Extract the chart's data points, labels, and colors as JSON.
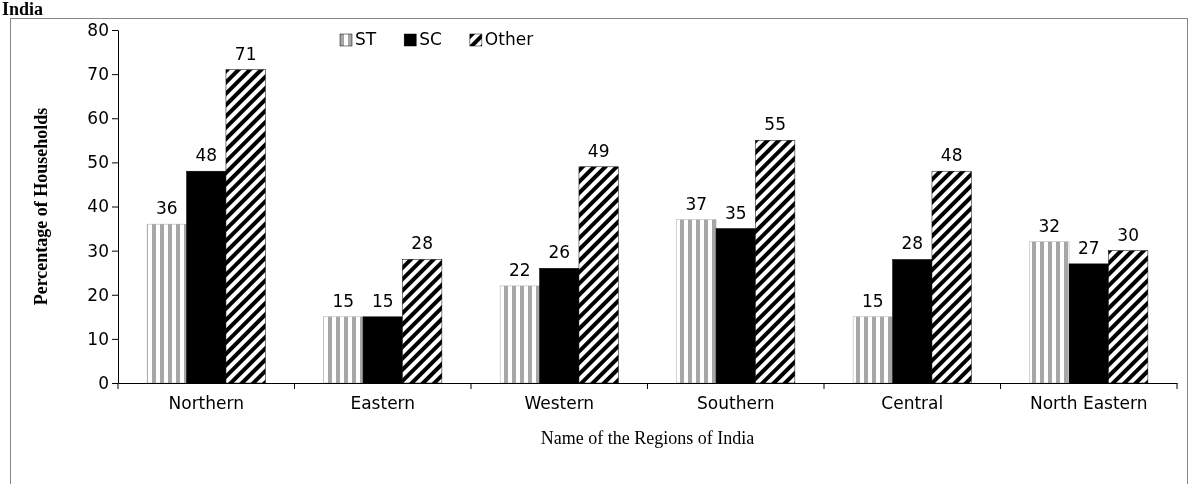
{
  "chart_data": {
    "type": "bar",
    "title": "India",
    "xlabel": "Name of the Regions of India",
    "ylabel": "Percentage of Households",
    "categories": [
      "Northern",
      "Eastern",
      "Western",
      "Southern",
      "Central",
      "North Eastern"
    ],
    "series": [
      {
        "name": "ST",
        "color": "#a6a6a6",
        "values": [
          36,
          15,
          22,
          37,
          15,
          32
        ]
      },
      {
        "name": "SC",
        "color": "#000000",
        "values": [
          48,
          15,
          26,
          35,
          28,
          27
        ]
      },
      {
        "name": "Other",
        "color": "#000000",
        "values": [
          71,
          28,
          49,
          55,
          48,
          30
        ]
      }
    ],
    "ylim": [
      0,
      80
    ],
    "yticks": [
      0,
      10,
      20,
      30,
      40,
      50,
      60,
      70,
      80
    ],
    "grid": false,
    "legend": "top",
    "data_labels": true
  }
}
